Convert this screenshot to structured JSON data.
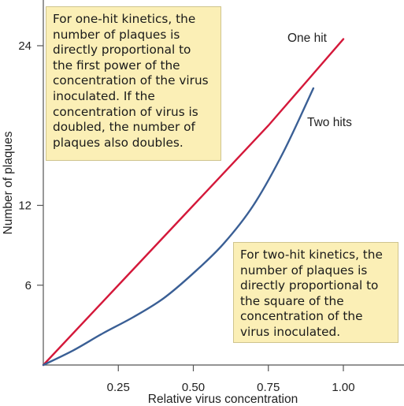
{
  "chart_data": {
    "type": "line",
    "xlabel": "Relative virus concentration",
    "ylabel": "Number of plaques",
    "xlim": [
      0,
      1.1
    ],
    "ylim": [
      0,
      25
    ],
    "x_ticks": [
      0.25,
      0.5,
      0.75,
      1.0
    ],
    "x_tick_labels": [
      "0.25",
      "0.50",
      "0.75",
      "1.00"
    ],
    "y_ticks": [
      6,
      12,
      24
    ],
    "y_tick_labels": [
      "6",
      "12",
      "24"
    ],
    "grid": false,
    "series": [
      {
        "name": "One hit",
        "color": "#d4183a",
        "x": [
          0,
          0.25,
          0.5,
          0.75,
          1.0
        ],
        "y": [
          0,
          6,
          12,
          18,
          24.5
        ]
      },
      {
        "name": "Two hits",
        "color": "#3a5f95",
        "x": [
          0,
          0.1,
          0.2,
          0.3,
          0.4,
          0.5,
          0.6,
          0.7,
          0.8,
          0.9
        ],
        "y": [
          0,
          1.1,
          2.4,
          3.6,
          5.0,
          6.9,
          9.1,
          12.0,
          16.0,
          20.8
        ]
      }
    ],
    "annotations": [
      "For one-hit kinetics, the number of plaques is directly proportional to the first power of the concentration of the virus inoculated. If the concentration of virus is doubled, the number of plaques also doubles.",
      "For two-hit kinetics, the number of plaques is directly proportional to the square of the concentration of the virus inoculated."
    ]
  }
}
